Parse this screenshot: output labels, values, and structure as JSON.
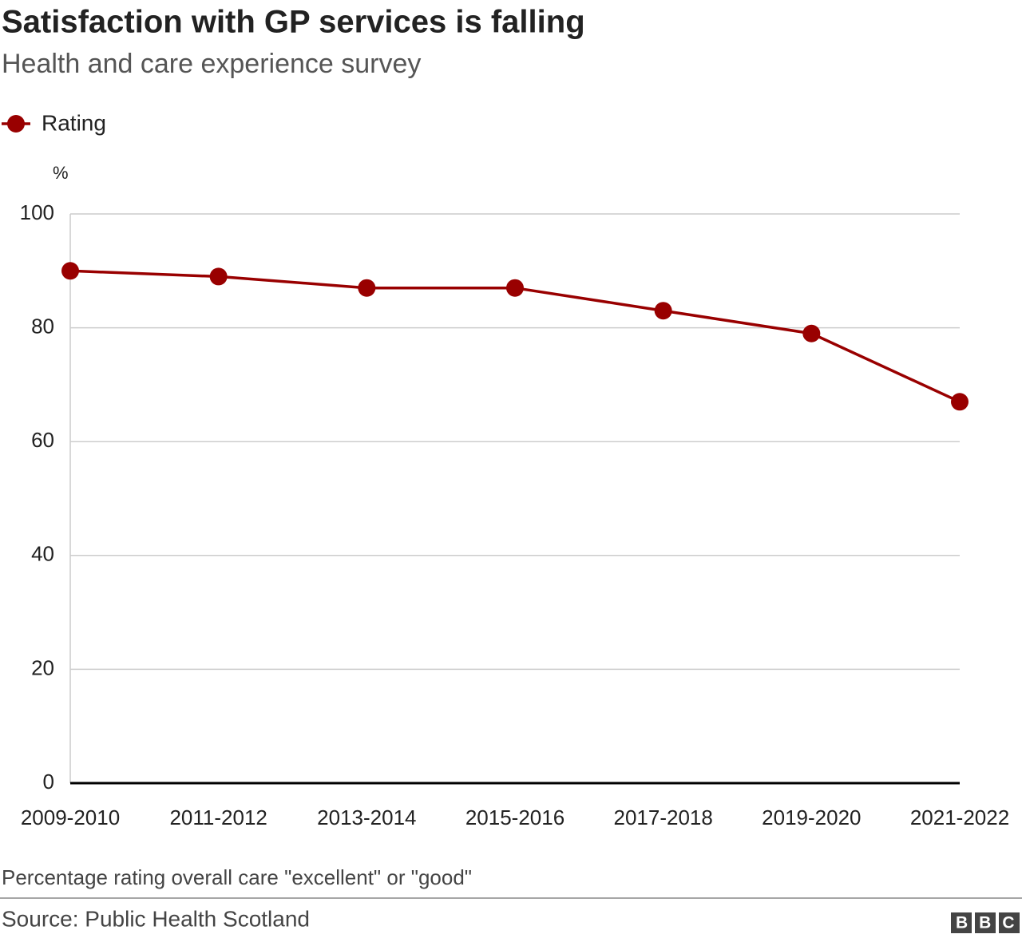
{
  "chart_data": {
    "type": "line",
    "title": "Satisfaction with GP services is falling",
    "subtitle": "Health and care experience survey",
    "y_label": "%",
    "categories": [
      "2009-2010",
      "2011-2012",
      "2013-2014",
      "2015-2016",
      "2017-2018",
      "2019-2020",
      "2021-2022"
    ],
    "series": [
      {
        "name": "Rating",
        "color": "#990000",
        "values": [
          90,
          89,
          87,
          87,
          83,
          79,
          67
        ]
      }
    ],
    "ylim": [
      0,
      100
    ],
    "yticks": [
      0,
      20,
      40,
      60,
      80,
      100
    ],
    "grid": true,
    "note": "Percentage rating overall care \"excellent\" or \"good\"",
    "source": "Source: Public Health Scotland",
    "logo": "BBC"
  }
}
